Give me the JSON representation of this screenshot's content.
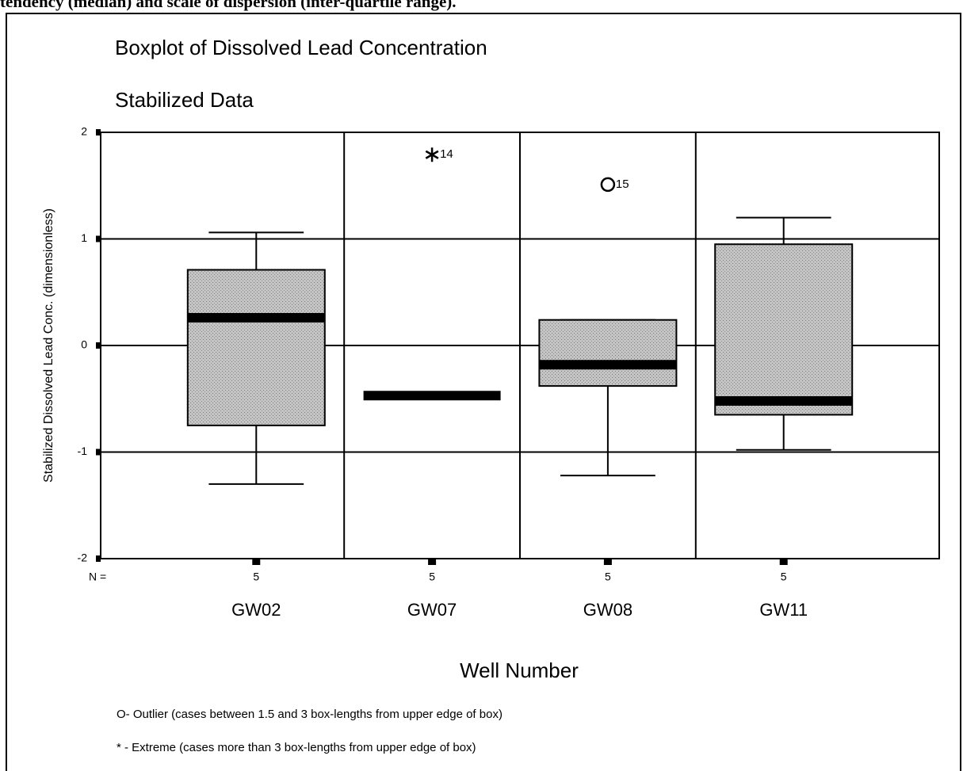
{
  "caption_fragment": "tendency (median) and scale of dispersion (inter-quartile range).",
  "chart_data": {
    "type": "box",
    "title": "Boxplot of Dissolved Lead Concentration",
    "subtitle": "Stabilized Data",
    "ylabel": "Stabilized Dissolved Lead Conc. (dimensionless)",
    "xlabel": "Well Number",
    "categories": [
      "GW02",
      "GW07",
      "GW08",
      "GW11"
    ],
    "n_label": "N =",
    "boxes": [
      {
        "whislo": -1.3,
        "q1": -0.75,
        "med": 0.26,
        "q3": 0.71,
        "whishi": 1.06,
        "n": 5,
        "fliers": []
      },
      {
        "whislo": -0.47,
        "q1": -0.47,
        "med": -0.47,
        "q3": -0.47,
        "whishi": -0.47,
        "n": 5,
        "fliers": [
          {
            "value": 1.79,
            "label": "14",
            "symbol": "*"
          }
        ]
      },
      {
        "whislo": -1.22,
        "q1": -0.38,
        "med": -0.18,
        "q3": 0.24,
        "whishi": 0.24,
        "n": 5,
        "fliers": [
          {
            "value": 1.51,
            "label": "15",
            "symbol": "O"
          }
        ]
      },
      {
        "whislo": -0.98,
        "q1": -0.65,
        "med": -0.52,
        "q3": 0.95,
        "whishi": 1.2,
        "n": 5,
        "fliers": []
      }
    ],
    "color": "#bcbcbc",
    "ylim": [
      -2,
      2
    ],
    "yticks": [
      -2,
      -1,
      0,
      1,
      2
    ],
    "grid": true,
    "notes": [
      "O- Outlier (cases between 1.5 and 3 box-lengths from upper edge of box)",
      "* - Extreme (cases more than 3 box-lengths from upper edge of box)"
    ]
  }
}
